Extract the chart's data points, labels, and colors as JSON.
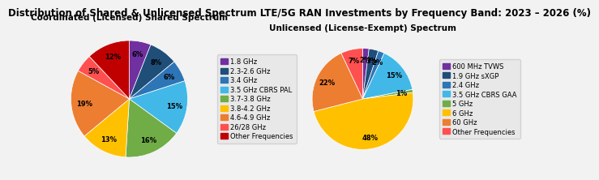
{
  "title": "Distribution of Shared & Unlicensed Spectrum LTE/5G RAN Investments by Frequency Band: 2023 – 2026 (%)",
  "left_title": "Coordinated (Licensed) Shared Spectrum",
  "right_title": "Unlicensed (License-Exempt) Spectrum",
  "left_labels": [
    "1.8 GHz",
    "2.3-2.6 GHz",
    "3.4 GHz",
    "3.5 GHz CBRS PAL",
    "3.7-3.8 GHz",
    "3.8-4.2 GHz",
    "4.6-4.9 GHz",
    "26/28 GHz",
    "Other Frequencies"
  ],
  "left_values": [
    6,
    8,
    6,
    15,
    16,
    13,
    19,
    5,
    12
  ],
  "left_colors": [
    "#7030a0",
    "#1f4e79",
    "#2e75b6",
    "#41b8e8",
    "#70ad47",
    "#ffc000",
    "#ed7d31",
    "#ff5050",
    "#c00000"
  ],
  "right_labels": [
    "600 MHz TVWS",
    "1.9 GHz sXGP",
    "2.4 GHz",
    "3.5 GHz CBRS GAA",
    "5 GHz",
    "6 GHz",
    "60 GHz",
    "Other Frequencies"
  ],
  "right_values": [
    2,
    3,
    2,
    15,
    1,
    48,
    22,
    7
  ],
  "right_colors": [
    "#7030a0",
    "#1f4e79",
    "#2e75b6",
    "#41b8e8",
    "#70ad47",
    "#ffc000",
    "#ed7d31",
    "#ff5050"
  ],
  "background_color": "#f2f2f2",
  "title_fontsize": 8.5,
  "subtitle_fontsize": 7.5,
  "label_fontsize": 6.0,
  "legend_fontsize": 6.0
}
